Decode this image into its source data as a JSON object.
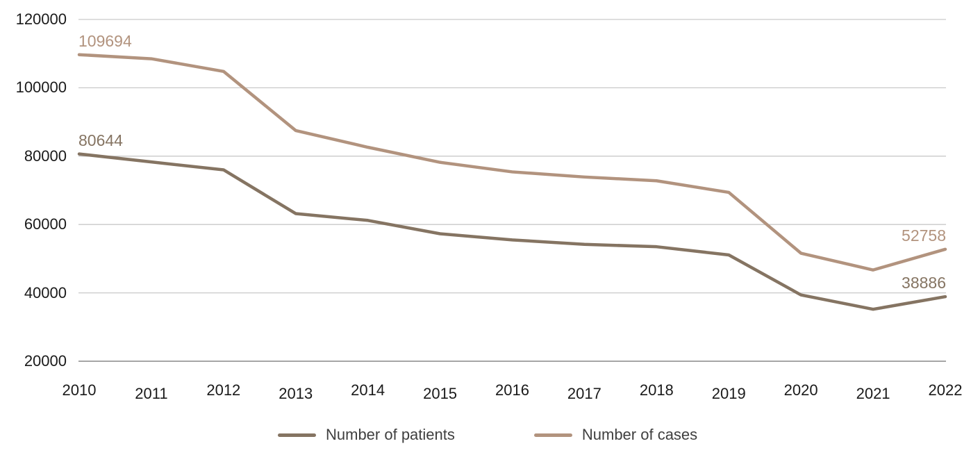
{
  "chart_data": {
    "type": "line",
    "x": [
      "2010",
      "2011",
      "2012",
      "2013",
      "2014",
      "2015",
      "2016",
      "2017",
      "2018",
      "2019",
      "2020",
      "2021",
      "2022"
    ],
    "series": [
      {
        "name": "Number of patients",
        "color": "#857462",
        "values": [
          80644,
          78300,
          76000,
          63200,
          61200,
          57300,
          55500,
          54200,
          53500,
          51100,
          39400,
          35200,
          38886
        ],
        "endpoint_labels": {
          "first": "80644",
          "last": "38886"
        }
      },
      {
        "name": "Number of cases",
        "color": "#b2937e",
        "values": [
          109694,
          108500,
          104800,
          87500,
          82600,
          78200,
          75400,
          73900,
          72800,
          69400,
          51600,
          46700,
          52758
        ],
        "endpoint_labels": {
          "first": "109694",
          "last": "52758"
        }
      }
    ],
    "ylim": [
      20000,
      120000
    ],
    "yticks": [
      120000,
      100000,
      80000,
      60000,
      40000,
      20000
    ],
    "grid": true,
    "legend_position": "bottom",
    "colors": {
      "gridline": "#c9c9c9",
      "axis_line": "#a6a6a6",
      "tick_label": "#1a1a1a",
      "legend_text": "#3f3f3f",
      "background": "#ffffff"
    }
  }
}
